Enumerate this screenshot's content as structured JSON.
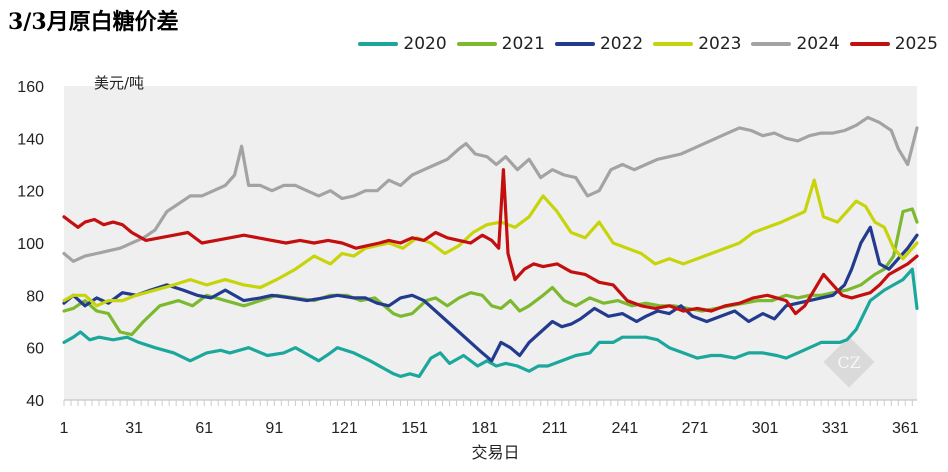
{
  "chart_data": {
    "type": "line",
    "title": "3/3月原白糖价差",
    "unit_label": "美元/吨",
    "xlabel": "交易日",
    "ylim": [
      40,
      160
    ],
    "yticks": [
      "40",
      "60",
      "80",
      "100",
      "120",
      "140",
      "160"
    ],
    "xlim": [
      1,
      366
    ],
    "xticks": [
      "1",
      "31",
      "61",
      "91",
      "121",
      "151",
      "181",
      "211",
      "241",
      "271",
      "301",
      "331",
      "361"
    ],
    "grid": false,
    "legend_position": "top-right",
    "series": [
      {
        "name": "2020",
        "color": "#1ca79c",
        "x": [
          1,
          5,
          8,
          12,
          16,
          22,
          28,
          33,
          40,
          48,
          55,
          62,
          68,
          72,
          80,
          88,
          95,
          100,
          104,
          110,
          115,
          118,
          125,
          132,
          138,
          142,
          145,
          149,
          153,
          158,
          162,
          166,
          172,
          178,
          182,
          186,
          190,
          195,
          200,
          204,
          208,
          214,
          220,
          226,
          230,
          236,
          240,
          245,
          250,
          255,
          260,
          266,
          272,
          278,
          282,
          288,
          294,
          300,
          306,
          310,
          315,
          320,
          325,
          330,
          333,
          336,
          340,
          346,
          352,
          356,
          360,
          364,
          366
        ],
        "values": [
          62,
          64,
          66,
          63,
          64,
          63,
          64,
          62,
          60,
          58,
          55,
          58,
          59,
          58,
          60,
          57,
          58,
          60,
          58,
          55,
          58,
          60,
          58,
          55,
          52,
          50,
          49,
          50,
          49,
          56,
          58,
          54,
          57,
          53,
          55,
          53,
          54,
          53,
          51,
          53,
          53,
          55,
          57,
          58,
          62,
          62,
          64,
          64,
          64,
          63,
          60,
          58,
          56,
          57,
          57,
          56,
          58,
          58,
          57,
          56,
          58,
          60,
          62,
          62,
          62,
          63,
          67,
          78,
          82,
          84,
          86,
          90,
          75
        ]
      },
      {
        "name": "2021",
        "color": "#7cb92f",
        "x": [
          1,
          5,
          10,
          15,
          20,
          25,
          30,
          35,
          42,
          50,
          56,
          62,
          70,
          78,
          85,
          92,
          100,
          108,
          115,
          122,
          128,
          134,
          138,
          142,
          145,
          150,
          156,
          160,
          165,
          170,
          175,
          180,
          184,
          188,
          192,
          196,
          200,
          206,
          210,
          215,
          220,
          226,
          232,
          238,
          244,
          250,
          256,
          262,
          268,
          274,
          280,
          286,
          292,
          298,
          304,
          310,
          315,
          320,
          325,
          330,
          336,
          342,
          348,
          352,
          356,
          360,
          364,
          366
        ],
        "values": [
          74,
          75,
          78,
          74,
          73,
          66,
          65,
          70,
          76,
          78,
          76,
          80,
          78,
          76,
          78,
          80,
          79,
          78,
          80,
          80,
          78,
          79,
          76,
          73,
          72,
          73,
          78,
          79,
          76,
          79,
          81,
          80,
          76,
          75,
          78,
          74,
          76,
          80,
          83,
          78,
          76,
          79,
          77,
          78,
          76,
          77,
          76,
          76,
          75,
          74,
          75,
          76,
          77,
          78,
          78,
          80,
          79,
          80,
          80,
          81,
          82,
          84,
          88,
          90,
          95,
          112,
          113,
          108
        ]
      },
      {
        "name": "2022",
        "color": "#233b8f",
        "x": [
          1,
          5,
          10,
          15,
          20,
          26,
          32,
          38,
          45,
          52,
          58,
          64,
          70,
          78,
          85,
          90,
          98,
          105,
          112,
          118,
          125,
          130,
          135,
          140,
          145,
          150,
          155,
          160,
          165,
          170,
          175,
          180,
          184,
          188,
          192,
          196,
          200,
          205,
          210,
          214,
          218,
          222,
          228,
          234,
          240,
          246,
          250,
          255,
          260,
          265,
          270,
          276,
          282,
          288,
          294,
          300,
          305,
          310,
          315,
          320,
          325,
          330,
          335,
          338,
          342,
          346,
          350,
          354,
          358,
          362,
          366
        ],
        "values": [
          77,
          80,
          76,
          79,
          77,
          81,
          80,
          82,
          84,
          82,
          80,
          79,
          82,
          78,
          79,
          80,
          79,
          78,
          79,
          80,
          79,
          79,
          77,
          76,
          79,
          80,
          78,
          74,
          70,
          66,
          62,
          58,
          55,
          62,
          60,
          57,
          62,
          66,
          70,
          68,
          69,
          71,
          75,
          72,
          73,
          70,
          72,
          74,
          73,
          76,
          72,
          70,
          72,
          74,
          70,
          73,
          71,
          76,
          77,
          78,
          79,
          80,
          84,
          90,
          100,
          106,
          92,
          90,
          94,
          98,
          103
        ]
      },
      {
        "name": "2023",
        "color": "#c7d40a",
        "x": [
          1,
          5,
          10,
          15,
          20,
          26,
          32,
          40,
          48,
          55,
          62,
          70,
          78,
          85,
          92,
          100,
          108,
          115,
          120,
          125,
          130,
          135,
          140,
          146,
          152,
          158,
          164,
          170,
          176,
          182,
          188,
          194,
          200,
          206,
          212,
          218,
          224,
          230,
          236,
          242,
          248,
          254,
          260,
          266,
          272,
          278,
          284,
          290,
          296,
          302,
          308,
          313,
          318,
          322,
          326,
          332,
          336,
          340,
          344,
          348,
          352,
          356,
          360,
          366
        ],
        "values": [
          78,
          80,
          80,
          76,
          78,
          78,
          80,
          82,
          84,
          86,
          84,
          86,
          84,
          83,
          86,
          90,
          95,
          92,
          96,
          95,
          98,
          99,
          100,
          98,
          102,
          100,
          96,
          99,
          104,
          107,
          108,
          106,
          110,
          118,
          112,
          104,
          102,
          108,
          100,
          98,
          96,
          92,
          94,
          92,
          94,
          96,
          98,
          100,
          104,
          106,
          108,
          110,
          112,
          124,
          110,
          108,
          112,
          116,
          114,
          108,
          106,
          98,
          94,
          100
        ]
      },
      {
        "name": "2024",
        "color": "#a3a3a3",
        "x": [
          1,
          5,
          10,
          15,
          20,
          25,
          30,
          35,
          40,
          45,
          50,
          55,
          60,
          65,
          70,
          74,
          77,
          80,
          85,
          90,
          95,
          100,
          105,
          110,
          115,
          120,
          125,
          130,
          135,
          140,
          145,
          150,
          155,
          160,
          165,
          170,
          173,
          177,
          182,
          186,
          190,
          195,
          200,
          205,
          210,
          215,
          220,
          225,
          230,
          235,
          240,
          245,
          250,
          255,
          260,
          265,
          270,
          275,
          280,
          285,
          290,
          295,
          300,
          305,
          310,
          315,
          320,
          325,
          330,
          335,
          340,
          345,
          350,
          355,
          358,
          362,
          366
        ],
        "values": [
          96,
          93,
          95,
          96,
          97,
          98,
          100,
          102,
          105,
          112,
          115,
          118,
          118,
          120,
          122,
          126,
          137,
          122,
          122,
          120,
          122,
          122,
          120,
          118,
          120,
          117,
          118,
          120,
          120,
          124,
          122,
          126,
          128,
          130,
          132,
          136,
          138,
          134,
          133,
          130,
          133,
          128,
          132,
          125,
          128,
          126,
          125,
          118,
          120,
          128,
          130,
          128,
          130,
          132,
          133,
          134,
          136,
          138,
          140,
          142,
          144,
          143,
          141,
          142,
          140,
          139,
          141,
          142,
          142,
          143,
          145,
          148,
          146,
          143,
          136,
          130,
          144
        ]
      },
      {
        "name": "2025",
        "color": "#c40f0f",
        "x": [
          1,
          4,
          7,
          10,
          14,
          18,
          22,
          26,
          30,
          36,
          42,
          48,
          54,
          60,
          66,
          72,
          78,
          84,
          90,
          96,
          102,
          108,
          114,
          120,
          126,
          131,
          136,
          140,
          145,
          150,
          155,
          160,
          165,
          170,
          175,
          180,
          184,
          187,
          189,
          191,
          194,
          198,
          202,
          206,
          212,
          218,
          224,
          230,
          236,
          242,
          248,
          254,
          260,
          266,
          272,
          278,
          284,
          290,
          296,
          302,
          306,
          310,
          314,
          318,
          322,
          326,
          330,
          334,
          338,
          342,
          346,
          350,
          354,
          358,
          362,
          366
        ],
        "values": [
          110,
          108,
          106,
          108,
          109,
          107,
          108,
          107,
          104,
          101,
          102,
          103,
          104,
          100,
          101,
          102,
          103,
          102,
          101,
          100,
          101,
          100,
          101,
          100,
          98,
          99,
          100,
          101,
          100,
          102,
          101,
          104,
          102,
          101,
          100,
          103,
          101,
          98,
          128,
          96,
          86,
          90,
          92,
          91,
          92,
          89,
          88,
          85,
          84,
          78,
          76,
          75,
          76,
          74,
          75,
          74,
          76,
          77,
          79,
          80,
          79,
          78,
          73,
          76,
          82,
          88,
          84,
          80,
          79,
          80,
          81,
          84,
          88,
          90,
          92,
          95
        ]
      }
    ]
  }
}
